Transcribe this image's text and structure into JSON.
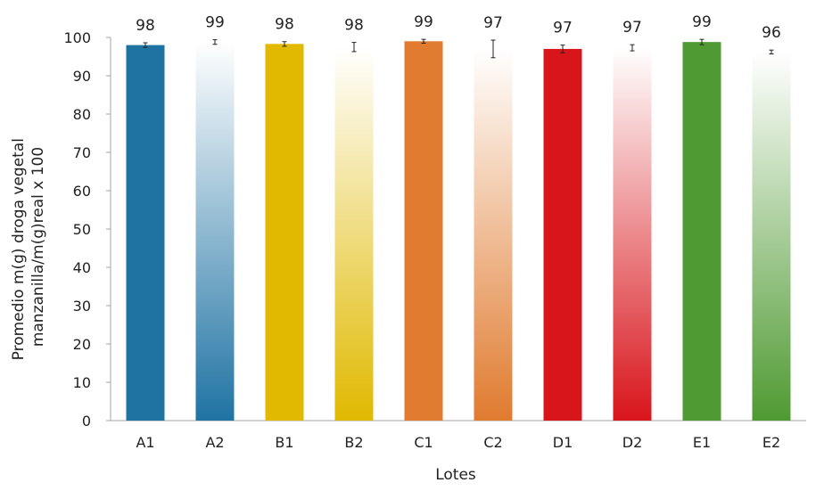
{
  "chart_data": {
    "type": "bar",
    "xlabel": "Lotes",
    "ylabel_lines": [
      "Promedio m(g) droga vegetal",
      "manzanilla/m(g)real x 100"
    ],
    "ylim": [
      0,
      100
    ],
    "yticks": [
      0,
      10,
      20,
      30,
      40,
      50,
      60,
      70,
      80,
      90,
      100
    ],
    "grid": "none",
    "categories": [
      "A1",
      "A2",
      "B1",
      "B2",
      "C1",
      "C2",
      "D1",
      "D2",
      "E1",
      "E2"
    ],
    "values": [
      98.0,
      98.8,
      98.3,
      97.5,
      99.0,
      97.0,
      97.0,
      97.3,
      98.8,
      96.2
    ],
    "data_labels": [
      "98",
      "99",
      "98",
      "98",
      "99",
      "97",
      "97",
      "97",
      "99",
      "96"
    ],
    "errors": [
      0.6,
      0.6,
      0.6,
      1.2,
      0.5,
      2.3,
      1.0,
      0.8,
      0.7,
      0.5
    ],
    "bar_colors": [
      "#1f73a3",
      "#1f73a3",
      "#e0b900",
      "#e0b900",
      "#e07b2f",
      "#e07b2f",
      "#d8151b",
      "#d8151b",
      "#4f9a32",
      "#4f9a32"
    ],
    "bar_fill": [
      "solid",
      "gradient",
      "solid",
      "gradient",
      "solid",
      "gradient",
      "solid",
      "gradient",
      "solid",
      "gradient"
    ]
  }
}
